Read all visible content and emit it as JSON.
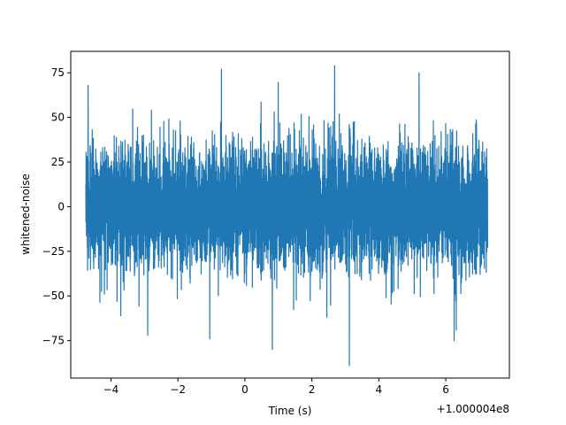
{
  "chart_data": {
    "type": "line",
    "title": "",
    "xlabel": "Time (s)",
    "ylabel": "whitened-noise",
    "x_offset_label": "+1.000004e8",
    "xlim": [
      -5.2,
      7.9
    ],
    "ylim": [
      -96,
      87
    ],
    "x_range": [
      -4.75,
      7.25
    ],
    "series": [
      {
        "color": "#1f77b4",
        "typical_amplitude": 32,
        "peaks": [
          {
            "x": -4.68,
            "y": 68
          },
          {
            "x": -0.7,
            "y": 77
          },
          {
            "x": 2.68,
            "y": 79
          },
          {
            "x": 5.2,
            "y": 75
          },
          {
            "x": 3.12,
            "y": -89
          },
          {
            "x": 0.82,
            "y": -80
          },
          {
            "x": -1.05,
            "y": -74
          },
          {
            "x": 6.25,
            "y": -75
          },
          {
            "x": -2.9,
            "y": -72
          }
        ]
      }
    ],
    "xticks": [
      -4,
      -2,
      0,
      2,
      4,
      6
    ],
    "yticks": [
      75,
      50,
      25,
      0,
      -25,
      -50,
      -75
    ],
    "grid": false
  }
}
